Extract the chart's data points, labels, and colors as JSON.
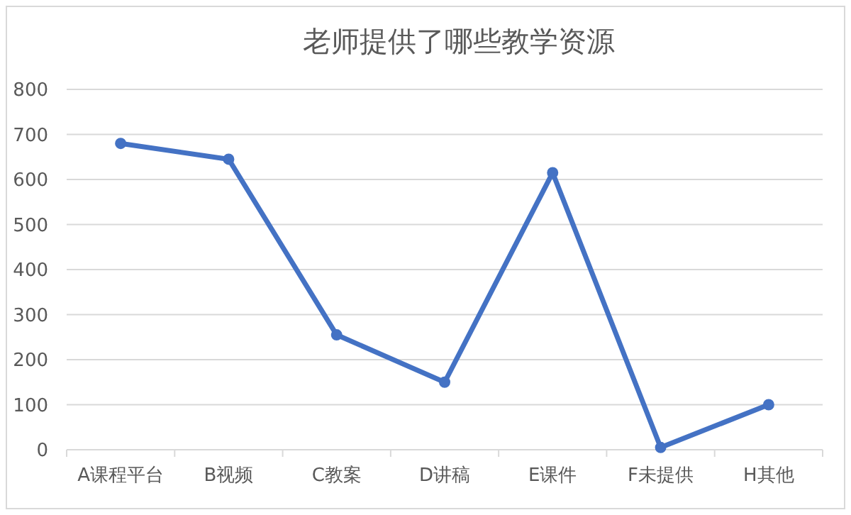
{
  "chart_data": {
    "type": "line",
    "title": "老师提供了哪些教学资源",
    "categories": [
      "A课程平台",
      "B视频",
      "C教案",
      "D讲稿",
      "E课件",
      "F未提供",
      "H其他"
    ],
    "series": [
      {
        "color": "#4472c4",
        "values": [
          680,
          645,
          255,
          150,
          615,
          5,
          100
        ]
      }
    ],
    "ylim": [
      0,
      800
    ],
    "yticks": [
      0,
      100,
      200,
      300,
      400,
      500,
      600,
      700,
      800
    ],
    "grid": "y",
    "marker": "circle",
    "line_style": "solid"
  }
}
